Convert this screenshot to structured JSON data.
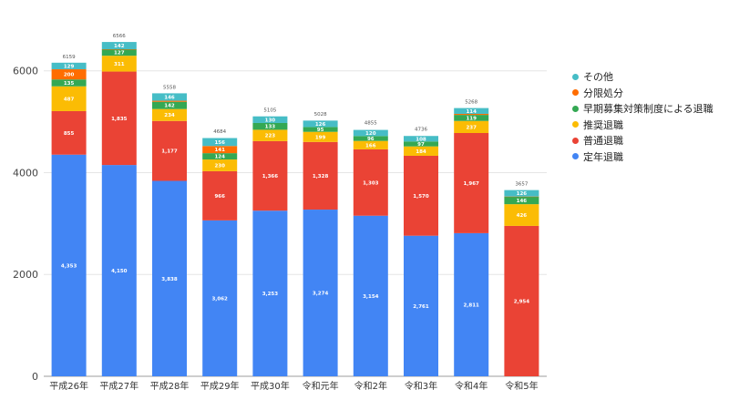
{
  "chart_data": {
    "type": "bar",
    "stacked": true,
    "categories": [
      "平成26年",
      "平成27年",
      "平成28年",
      "平成29年",
      "平成30年",
      "令和元年",
      "令和2年",
      "令和3年",
      "令和4年",
      "令和5年"
    ],
    "ylim": [
      0,
      6800
    ],
    "yticks": [
      0,
      2000,
      4000,
      6000
    ],
    "ytick_labels": [
      "0",
      "2000",
      "4000",
      "6000"
    ],
    "legend_position": "right",
    "totals": [
      6159,
      6566,
      5558,
      4684,
      5105,
      5028,
      4855,
      4736,
      5268,
      3657
    ],
    "total_labels": [
      "6159",
      "6566",
      "5558",
      "4684",
      "5105",
      "5028",
      "4855",
      "4736",
      "5268",
      "3657"
    ],
    "series": [
      {
        "name": "定年退職",
        "color": "#4285f4",
        "values": [
          4353,
          4150,
          3838,
          3062,
          3253,
          3274,
          3154,
          2761,
          2811,
          0
        ],
        "labels": [
          "4,353",
          "4,150",
          "3,838",
          "3,062",
          "3,253",
          "3,274",
          "3,154",
          "2,761",
          "2,811",
          "0"
        ]
      },
      {
        "name": "普通退職",
        "color": "#ea4335",
        "values": [
          855,
          1835,
          1177,
          966,
          1366,
          1328,
          1303,
          1570,
          1967,
          2954
        ],
        "labels": [
          "855",
          "1,835",
          "1,177",
          "966",
          "1,366",
          "1,328",
          "1,303",
          "1,570",
          "1,967",
          "2,954"
        ]
      },
      {
        "name": "推奨退職",
        "color": "#fbbc04",
        "values": [
          487,
          311,
          234,
          230,
          223,
          199,
          166,
          184,
          237,
          426
        ],
        "labels": [
          "487",
          "311",
          "234",
          "230",
          "223",
          "199",
          "166",
          "184",
          "237",
          "426"
        ]
      },
      {
        "name": "早期募集対策制度による退職",
        "color": "#34a853",
        "values": [
          135,
          127,
          142,
          124,
          133,
          95,
          96,
          97,
          119,
          146
        ],
        "labels": [
          "135",
          "127",
          "142",
          "124",
          "133",
          "95",
          "96",
          "97",
          "119",
          "146"
        ]
      },
      {
        "name": "分限処分",
        "color": "#ff6d01",
        "values": [
          200,
          1,
          21,
          141,
          0,
          0,
          0,
          0,
          20,
          5
        ],
        "labels": [
          "200",
          "",
          "",
          "141",
          "",
          "",
          "",
          "",
          "",
          ""
        ]
      },
      {
        "name": "その他",
        "color": "#46bdc6",
        "values": [
          129,
          142,
          146,
          156,
          130,
          126,
          120,
          108,
          114,
          126
        ],
        "labels": [
          "129",
          "142",
          "146",
          "156",
          "130",
          "126",
          "120",
          "108",
          "114",
          "126"
        ]
      }
    ]
  }
}
